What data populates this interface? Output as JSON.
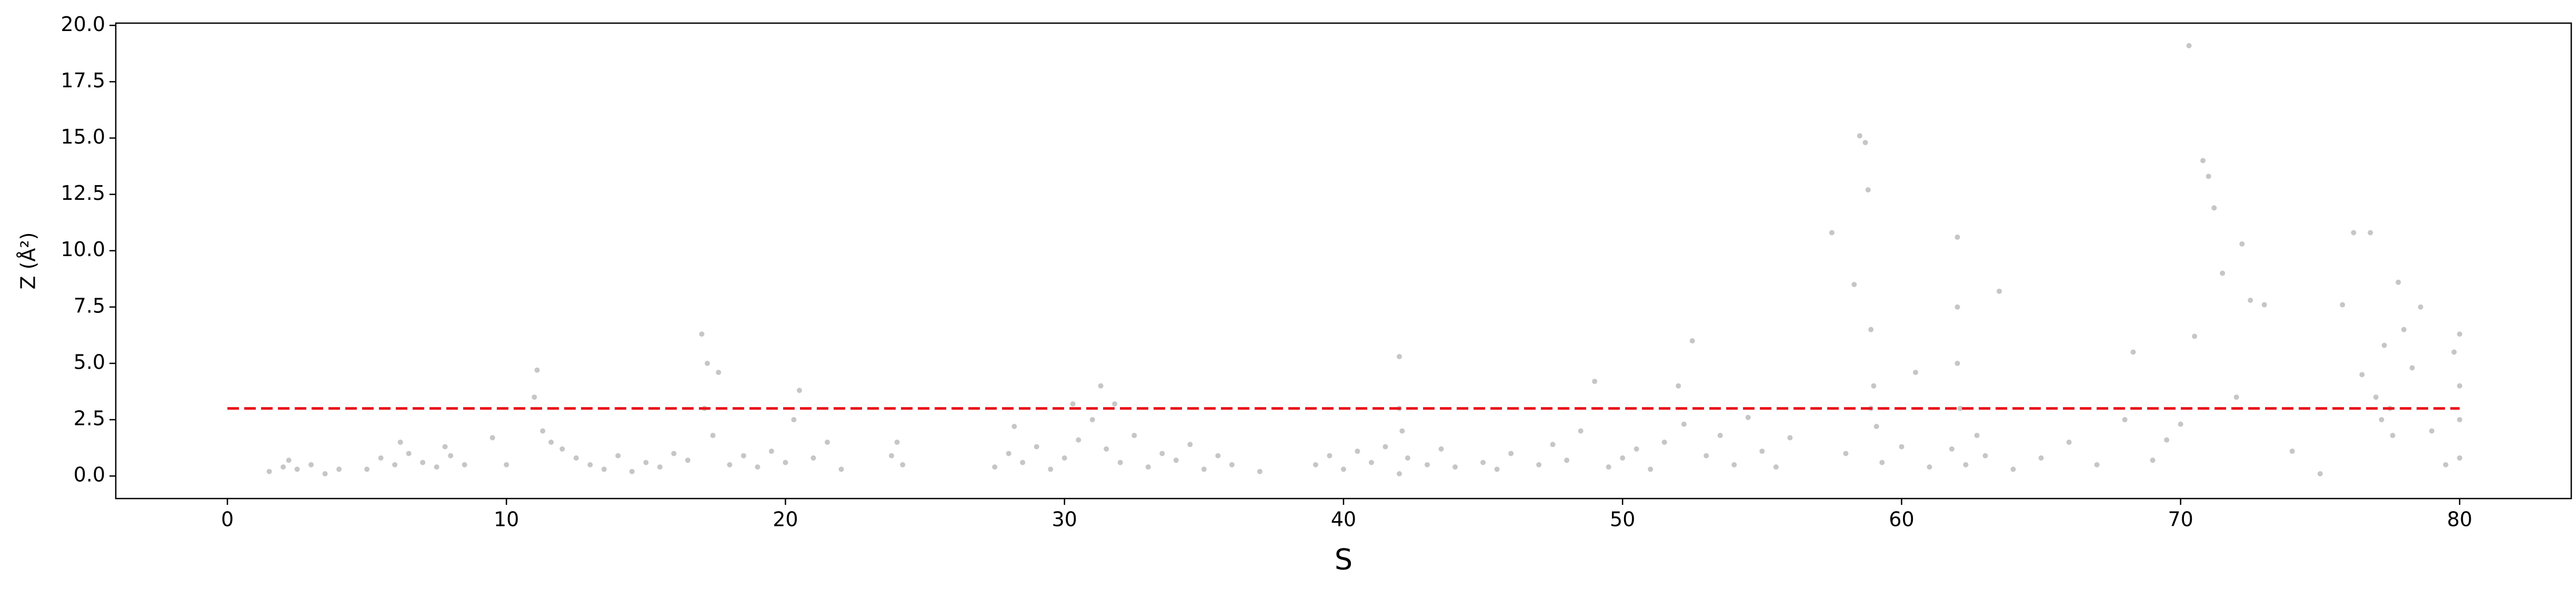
{
  "chart_data": {
    "type": "scatter",
    "xlabel": "S",
    "ylabel": "Z (Å²)",
    "xlim": [
      -4,
      84
    ],
    "ylim": [
      -1.0,
      20.1
    ],
    "xticks": [
      0,
      10,
      20,
      30,
      40,
      50,
      60,
      70,
      80
    ],
    "yticks": [
      {
        "value": 0,
        "label": "0.0"
      },
      {
        "value": 2.5,
        "label": "2.5"
      },
      {
        "value": 5,
        "label": "5.0"
      },
      {
        "value": 7.5,
        "label": "7.5"
      },
      {
        "value": 10,
        "label": "10.0"
      },
      {
        "value": 12.5,
        "label": "12.5"
      },
      {
        "value": 15,
        "label": "15.0"
      },
      {
        "value": 17.5,
        "label": "17.5"
      },
      {
        "value": 20,
        "label": "20.0"
      }
    ],
    "threshold": {
      "y": 3,
      "xmin": 0,
      "xmax": 80,
      "color": "#e8141c"
    },
    "series": [
      {
        "color": "#808080",
        "x": [
          1.5,
          2,
          2.5,
          3,
          3.5,
          4,
          2.2,
          5,
          5.5,
          6,
          6.5,
          7,
          7.5,
          8,
          8.5,
          6.2,
          7.8,
          9.5,
          10,
          11,
          11.1,
          11.3,
          11.6,
          12,
          12.5,
          13,
          13.5,
          14,
          14.5,
          15,
          15.5,
          16,
          16.5,
          17,
          17.2,
          17.1,
          17.4,
          17.6,
          18,
          18.5,
          19,
          19.5,
          20,
          20.3,
          20.5,
          21,
          21.5,
          22,
          23.8,
          24.2,
          24,
          27.5,
          28,
          28.5,
          29,
          29.5,
          30,
          30.5,
          31,
          31.3,
          31.5,
          31.8,
          32,
          32.5,
          33,
          33.5,
          34,
          34.5,
          35,
          35.5,
          36,
          37,
          30.3,
          28.2,
          39,
          39.5,
          40,
          40.5,
          41,
          41.5,
          42,
          42,
          42.1,
          42,
          42.3,
          43,
          43.5,
          44,
          45,
          45.5,
          46,
          47,
          47.5,
          48,
          48.5,
          49,
          49.5,
          50,
          50.5,
          51,
          51.5,
          52,
          52.2,
          52.5,
          53,
          53.5,
          54,
          54.5,
          55,
          55.5,
          56,
          57.5,
          58,
          58.3,
          58.5,
          58.7,
          58.8,
          58.9,
          59,
          58.9,
          59.1,
          59.3,
          60,
          60.5,
          61,
          62,
          62,
          62,
          62.1,
          61.8,
          62.3,
          62.7,
          63,
          63.5,
          64,
          65,
          66,
          67,
          68,
          68.3,
          69,
          69.5,
          70,
          70.3,
          70.5,
          70.8,
          71,
          71.2,
          71.5,
          72,
          72.2,
          72.5,
          73,
          74,
          75,
          75.8,
          76.2,
          76.5,
          76.8,
          77,
          77.2,
          77.3,
          77.5,
          77.6,
          77.8,
          78,
          78.3,
          78.6,
          79,
          79.5,
          80,
          80,
          80,
          80,
          79.8
        ],
        "values": [
          0.2,
          0.4,
          0.3,
          0.5,
          0.1,
          0.3,
          0.7,
          0.3,
          0.8,
          0.5,
          1.0,
          0.6,
          0.4,
          0.9,
          0.5,
          1.5,
          1.3,
          1.7,
          0.5,
          3.5,
          4.7,
          2.0,
          1.5,
          1.2,
          0.8,
          0.5,
          0.3,
          0.9,
          0.2,
          0.6,
          0.4,
          1.0,
          0.7,
          6.3,
          5.0,
          3.0,
          1.8,
          4.6,
          0.5,
          0.9,
          0.4,
          1.1,
          0.6,
          2.5,
          3.8,
          0.8,
          1.5,
          0.3,
          0.9,
          0.5,
          1.5,
          0.4,
          1.0,
          0.6,
          1.3,
          0.3,
          0.8,
          1.6,
          2.5,
          4.0,
          1.2,
          3.2,
          0.6,
          1.8,
          0.4,
          1.0,
          0.7,
          1.4,
          0.3,
          0.9,
          0.5,
          0.2,
          3.2,
          2.2,
          0.5,
          0.9,
          0.3,
          1.1,
          0.6,
          1.3,
          5.3,
          3.0,
          2.0,
          0.1,
          0.8,
          0.5,
          1.2,
          0.4,
          0.6,
          0.3,
          1.0,
          0.5,
          1.4,
          0.7,
          2.0,
          4.2,
          0.4,
          0.8,
          1.2,
          0.3,
          1.5,
          4.0,
          2.3,
          6.0,
          0.9,
          1.8,
          0.5,
          2.6,
          1.1,
          0.4,
          1.7,
          10.8,
          1.0,
          8.5,
          15.1,
          14.8,
          12.7,
          6.5,
          4.0,
          3.0,
          2.2,
          0.6,
          1.3,
          4.6,
          0.4,
          10.6,
          7.5,
          5.0,
          3.0,
          1.2,
          0.5,
          1.8,
          0.9,
          8.2,
          0.3,
          0.8,
          1.5,
          0.5,
          2.5,
          5.5,
          0.7,
          1.6,
          2.3,
          19.1,
          6.2,
          14.0,
          13.3,
          11.9,
          9.0,
          3.5,
          10.3,
          7.8,
          7.6,
          1.1,
          0.1,
          7.6,
          10.8,
          4.5,
          10.8,
          3.5,
          2.5,
          5.8,
          3.0,
          1.8,
          8.6,
          6.5,
          4.8,
          7.5,
          2.0,
          0.5,
          6.3,
          4.0,
          2.5,
          0.8,
          5.5
        ]
      }
    ]
  }
}
